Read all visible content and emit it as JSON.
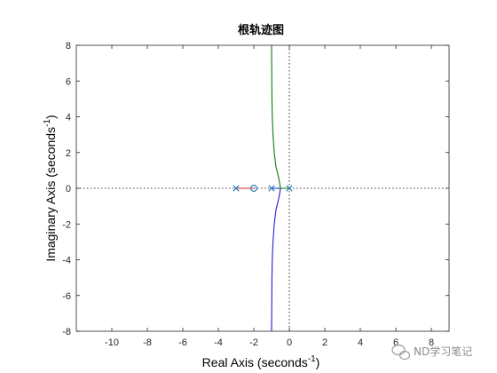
{
  "chart_data": {
    "type": "line",
    "title": "根轨迹图",
    "xlabel": "Real Axis (seconds",
    "xlabel_sup": "-1",
    "xlabel_close": ")",
    "ylabel": "Imaginary Axis (seconds",
    "ylabel_sup": "-1",
    "ylabel_close": ")",
    "xlim": [
      -12,
      9
    ],
    "ylim": [
      -8,
      8
    ],
    "xticks": [
      -10,
      -8,
      -6,
      -4,
      -2,
      0,
      2,
      4,
      6,
      8
    ],
    "yticks": [
      -8,
      -6,
      -4,
      -2,
      0,
      2,
      4,
      6,
      8
    ],
    "grid": false,
    "zero_lines": true,
    "poles": [
      {
        "x": -3,
        "y": 0
      },
      {
        "x": -1,
        "y": 0
      },
      {
        "x": 0,
        "y": 0
      }
    ],
    "zeros": [
      {
        "x": -2,
        "y": 0
      }
    ],
    "series": [
      {
        "color": "#d62728",
        "x": [
          -3,
          -2
        ],
        "y": [
          0,
          0
        ]
      },
      {
        "color": "#1f1fd6",
        "x": [
          -1,
          -0.5,
          -0.5,
          -0.58,
          -0.75,
          -0.85,
          -0.92,
          -0.96,
          -0.98,
          -0.99,
          -1.0
        ],
        "y": [
          0,
          0,
          0,
          -0.5,
          -1.2,
          -2,
          -3,
          -4,
          -5,
          -6.5,
          -8
        ]
      },
      {
        "color": "#0c7c0c",
        "x": [
          0,
          -0.5,
          -0.5,
          -0.58,
          -0.75,
          -0.85,
          -0.92,
          -0.96,
          -0.98,
          -0.99,
          -1.0
        ],
        "y": [
          0,
          0,
          0,
          0.5,
          1.2,
          2,
          3,
          4,
          5,
          6.5,
          8
        ]
      }
    ]
  },
  "watermark": {
    "text": "ND学习笔记"
  }
}
